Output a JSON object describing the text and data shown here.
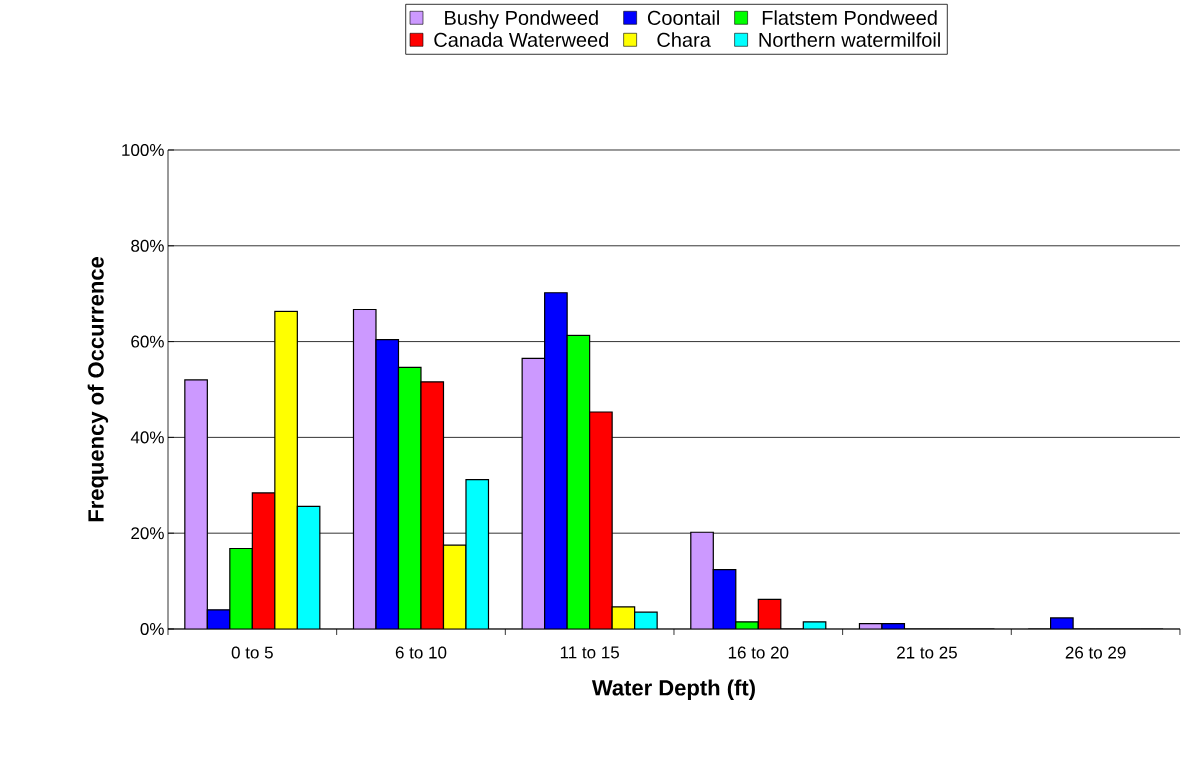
{
  "chart_data": {
    "type": "bar",
    "xlabel": "Water Depth (ft)",
    "ylabel": "Frequency of Occurrence",
    "categories": [
      "0 to 5",
      "6 to 10",
      "11 to 15",
      "16 to 20",
      "21 to 25",
      "26 to 29"
    ],
    "series": [
      {
        "name": "Bushy Pondweed",
        "color": "#cc99ff",
        "values": [
          52,
          66.7,
          56.5,
          20.2,
          1.1,
          0
        ]
      },
      {
        "name": "Coontail",
        "color": "#0000ff",
        "values": [
          4,
          60.4,
          70.2,
          12.4,
          1.1,
          2.3
        ]
      },
      {
        "name": "Flatstem Pondweed",
        "color": "#00ff00",
        "values": [
          16.8,
          54.6,
          61.3,
          1.5,
          0,
          0
        ]
      },
      {
        "name": "Canada Waterweed",
        "color": "#ff0000",
        "values": [
          28.4,
          51.6,
          45.3,
          6.2,
          0,
          0
        ]
      },
      {
        "name": "Chara",
        "color": "#ffff00",
        "values": [
          66.3,
          17.5,
          4.6,
          0,
          0,
          0
        ]
      },
      {
        "name": "Northern watermilfoil",
        "color": "#00ffff",
        "values": [
          25.6,
          31.2,
          3.5,
          1.5,
          0,
          0
        ]
      }
    ],
    "ylim": [
      0,
      100
    ],
    "yticks": [
      {
        "value": 0,
        "label": "0%"
      },
      {
        "value": 20,
        "label": "20%"
      },
      {
        "value": 40,
        "label": "40%"
      },
      {
        "value": 60,
        "label": "60%"
      },
      {
        "value": 80,
        "label": "80%"
      },
      {
        "value": 100,
        "label": "100%"
      }
    ],
    "grid": "y",
    "legend": "top"
  }
}
